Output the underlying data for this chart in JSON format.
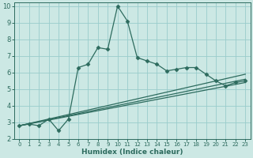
{
  "xlabel": "Humidex (Indice chaleur)",
  "bg_color": "#cce8e4",
  "grid_color": "#99cccc",
  "line_color": "#2d6b5e",
  "xlim": [
    -0.5,
    23.5
  ],
  "ylim": [
    2,
    10.2
  ],
  "xticks": [
    0,
    1,
    2,
    3,
    4,
    5,
    6,
    7,
    8,
    9,
    10,
    11,
    12,
    13,
    14,
    15,
    16,
    17,
    18,
    19,
    20,
    21,
    22,
    23
  ],
  "yticks": [
    2,
    3,
    4,
    5,
    6,
    7,
    8,
    9,
    10
  ],
  "line1_x": [
    0,
    1,
    2,
    3,
    4,
    5,
    6,
    7,
    8,
    9,
    10,
    11,
    12,
    13,
    14,
    15,
    16,
    17,
    18,
    19,
    20,
    21,
    22,
    23
  ],
  "line1_y": [
    2.8,
    2.9,
    2.8,
    3.2,
    2.5,
    3.2,
    6.3,
    6.5,
    7.5,
    7.4,
    10.0,
    9.1,
    6.9,
    6.7,
    6.5,
    6.1,
    6.2,
    6.3,
    6.3,
    5.9,
    5.5,
    5.2,
    5.4,
    5.5
  ],
  "line2_x": [
    0,
    23
  ],
  "line2_y": [
    2.8,
    5.4
  ],
  "line3_x": [
    0,
    23
  ],
  "line3_y": [
    2.8,
    5.6
  ],
  "line4_x": [
    0,
    23
  ],
  "line4_y": [
    2.8,
    5.9
  ]
}
